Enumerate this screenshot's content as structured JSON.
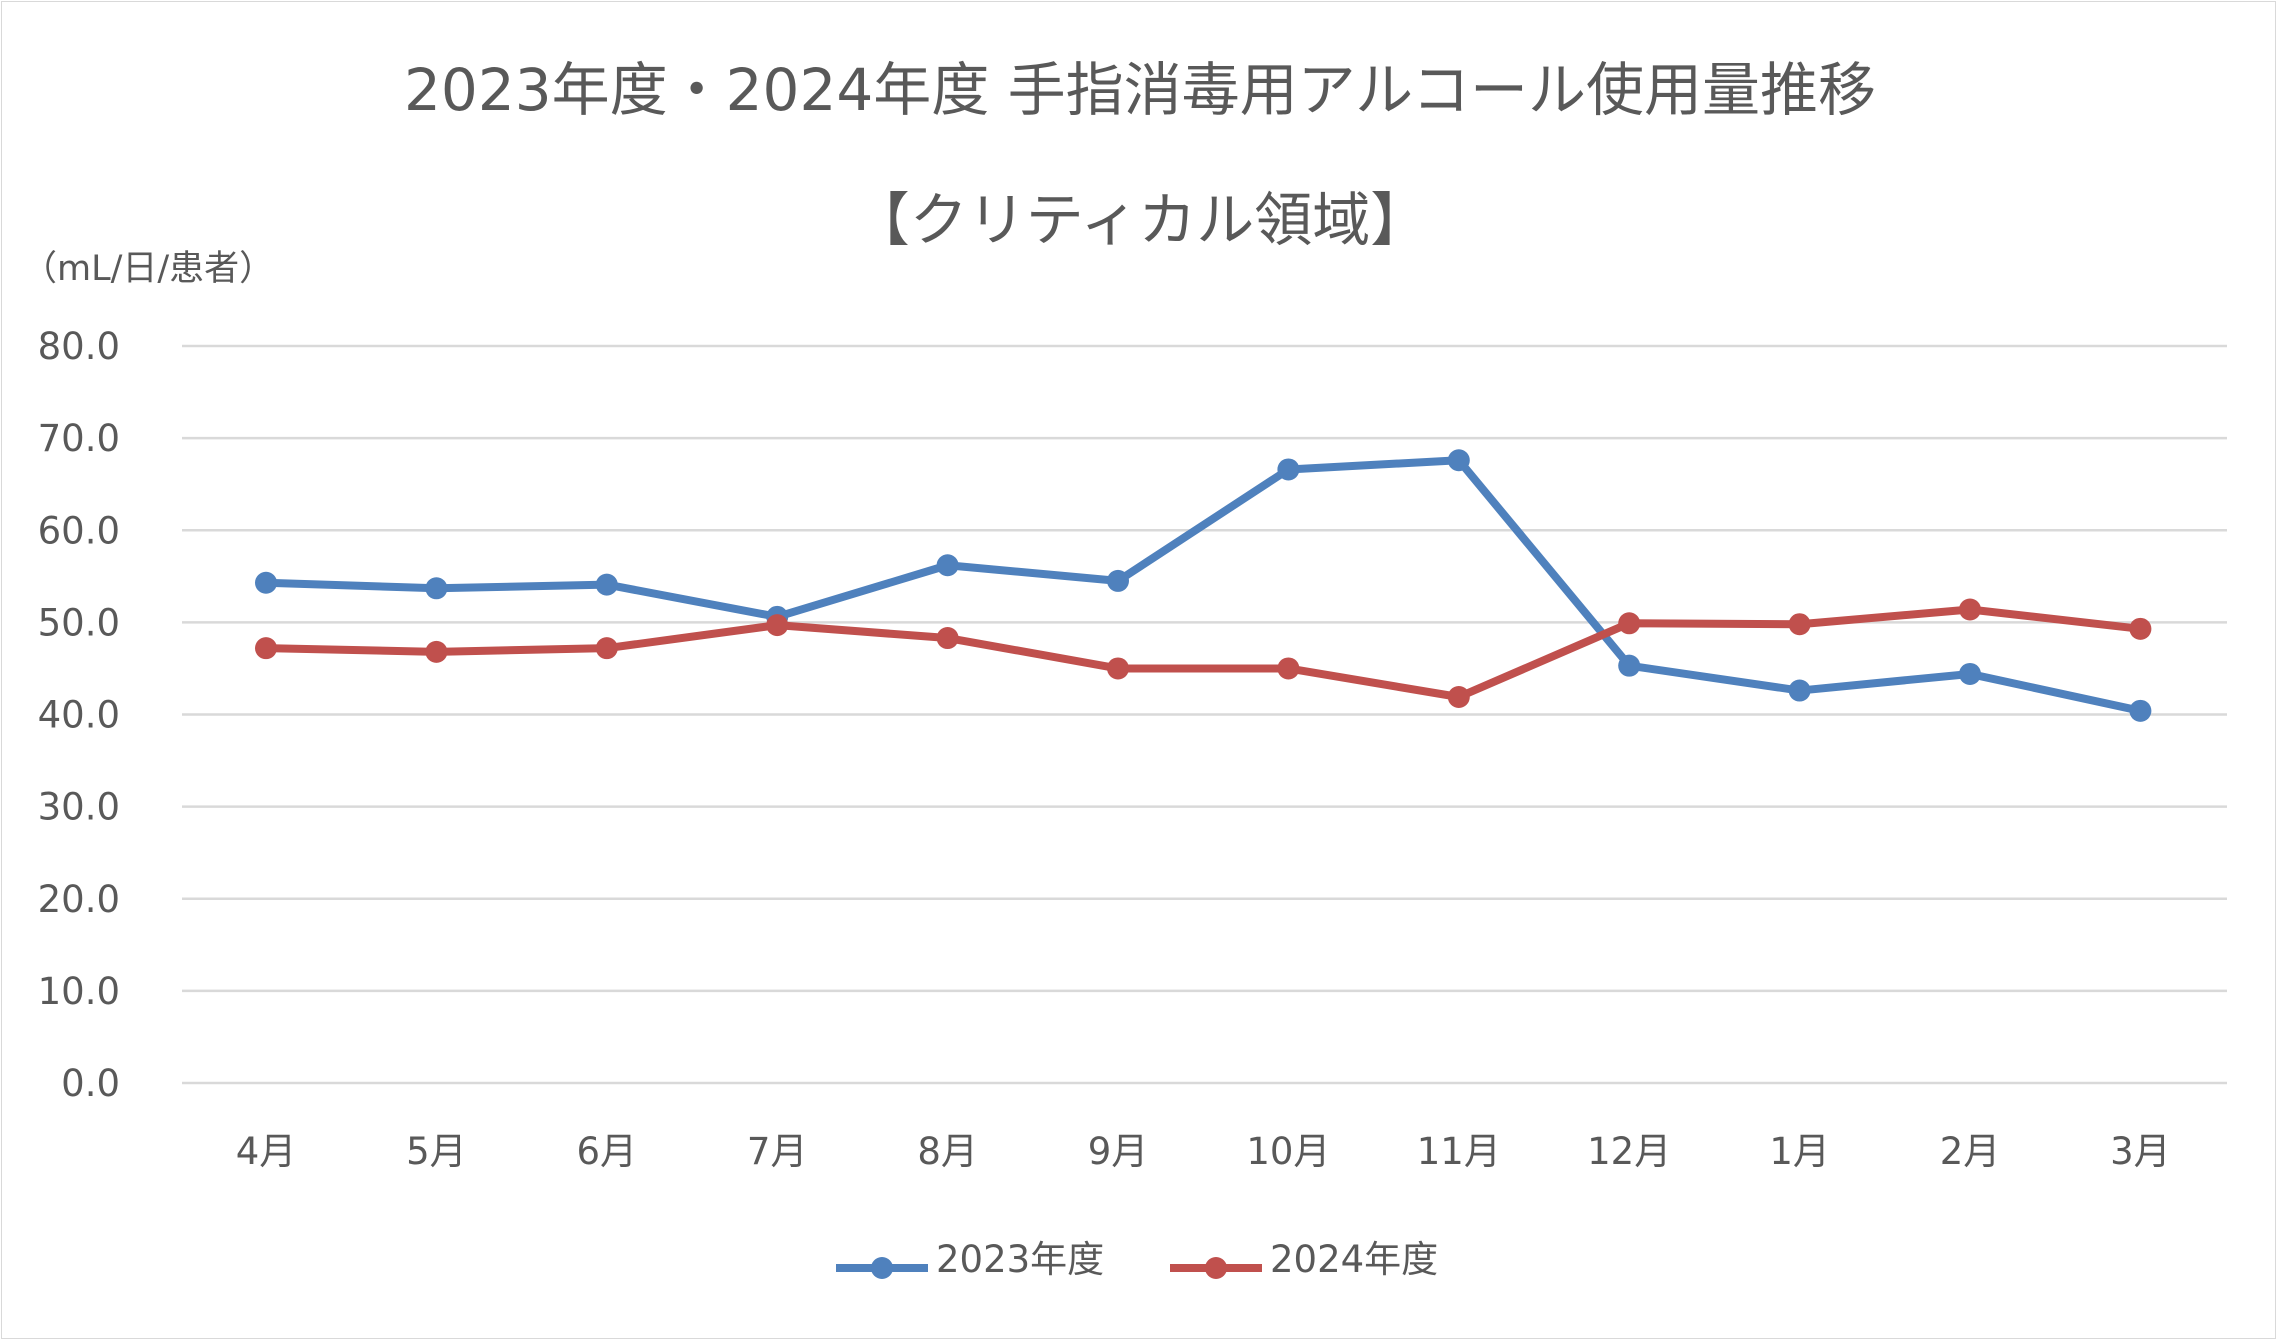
{
  "chart_data": {
    "type": "line",
    "title": "2023年度・2024年度 手指消毒用アルコール使用量推移",
    "subtitle": "【クリティカル領域】",
    "ylabel": "（mL/日/患者）",
    "xlabel": "",
    "categories": [
      "4月",
      "5月",
      "6月",
      "7月",
      "8月",
      "9月",
      "10月",
      "11月",
      "12月",
      "1月",
      "2月",
      "3月"
    ],
    "ylim": [
      0,
      80
    ],
    "yticks": [
      "0.0",
      "10.0",
      "20.0",
      "30.0",
      "40.0",
      "50.0",
      "60.0",
      "70.0",
      "80.0"
    ],
    "grid": true,
    "legend": "bottom",
    "series": [
      {
        "name": "2023年度",
        "color": "#4f81bd",
        "values": [
          54.3,
          53.7,
          54.1,
          50.6,
          56.2,
          54.5,
          66.6,
          67.6,
          45.3,
          42.6,
          44.4,
          40.4
        ]
      },
      {
        "name": "2024年度",
        "color": "#c0504d",
        "values": [
          47.2,
          46.8,
          47.2,
          49.7,
          48.3,
          45.0,
          45.0,
          41.9,
          49.9,
          49.8,
          51.4,
          49.3
        ]
      }
    ]
  }
}
